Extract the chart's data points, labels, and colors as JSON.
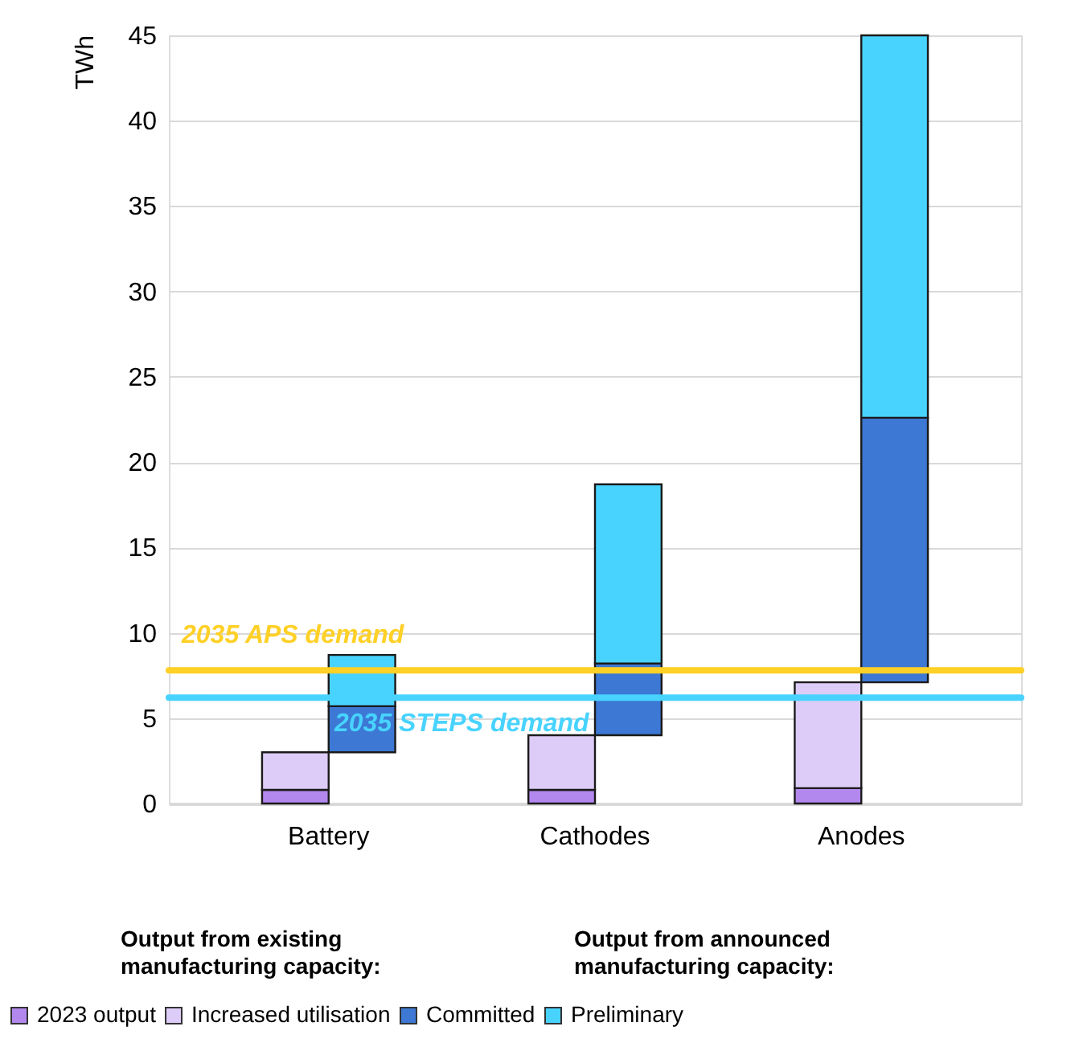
{
  "chart_data": {
    "type": "bar",
    "ylabel": "TWh",
    "categories": [
      "Battery",
      "Cathodes",
      "Anodes"
    ],
    "stacked": true,
    "series": [
      {
        "name": "2023 output",
        "color": "#b388ee",
        "values": [
          0.8,
          0.8,
          0.9
        ]
      },
      {
        "name": "Increased utilisation",
        "color": "#ddccf7",
        "values": [
          2.2,
          3.2,
          6.2
        ]
      },
      {
        "name": "Committed",
        "color": "#3c78d4",
        "values": [
          2.7,
          4.2,
          15.5
        ],
        "base": [
          3.0,
          4.0,
          7.1
        ]
      },
      {
        "name": "Preliminary",
        "color": "#48d3ff",
        "values": [
          3.0,
          10.5,
          22.4
        ]
      }
    ],
    "ylim": [
      0,
      45
    ],
    "yticks": [
      0,
      5,
      10,
      15,
      20,
      25,
      30,
      35,
      40,
      45
    ],
    "grid": "y",
    "legend": "bottom",
    "ref_lines": [
      {
        "axis": "y",
        "value": 7.8,
        "label": "2035 APS demand",
        "color": "#ffd026"
      },
      {
        "axis": "y",
        "value": 6.2,
        "label": "2035 STEPS demand",
        "color": "#48d3ff"
      }
    ],
    "annotations": [
      "Output from existing manufacturing capacity:",
      "Output from announced manufacturing capacity:"
    ]
  }
}
